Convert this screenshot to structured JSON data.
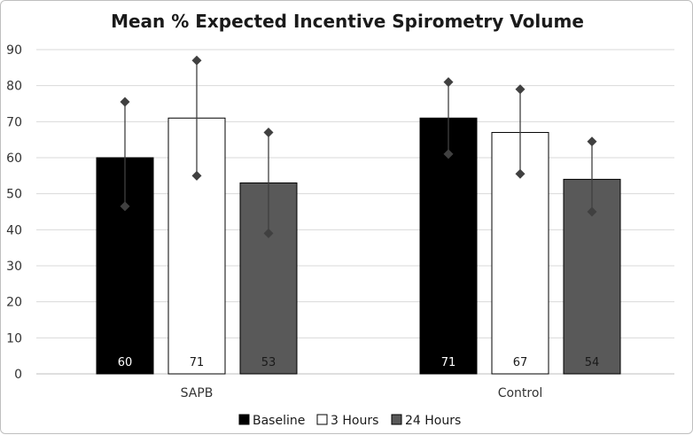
{
  "chart_data": {
    "type": "bar",
    "title": "Mean % Expected Incentive Spirometry Volume",
    "xlabel": "",
    "ylabel": "",
    "ylim": [
      0,
      90
    ],
    "yticks": [
      0,
      10,
      20,
      30,
      40,
      50,
      60,
      70,
      80,
      90
    ],
    "grid": true,
    "legend_position": "bottom",
    "categories": [
      "SAPB",
      "Control"
    ],
    "series": [
      {
        "name": "Baseline",
        "color": "#000000",
        "label_color": "#ffffff",
        "values": [
          60,
          71
        ],
        "error_low": [
          46.5,
          61
        ],
        "error_high": [
          75.5,
          81
        ]
      },
      {
        "name": "3 Hours",
        "color": "#ffffff",
        "label_color": "#1a1a1a",
        "values": [
          71,
          67
        ],
        "error_low": [
          55,
          55.5
        ],
        "error_high": [
          87,
          79
        ]
      },
      {
        "name": "24 Hours",
        "color": "#595959",
        "label_color": "#1a1a1a",
        "values": [
          53,
          54
        ],
        "error_low": [
          39,
          45
        ],
        "error_high": [
          67,
          64.5
        ]
      }
    ]
  }
}
